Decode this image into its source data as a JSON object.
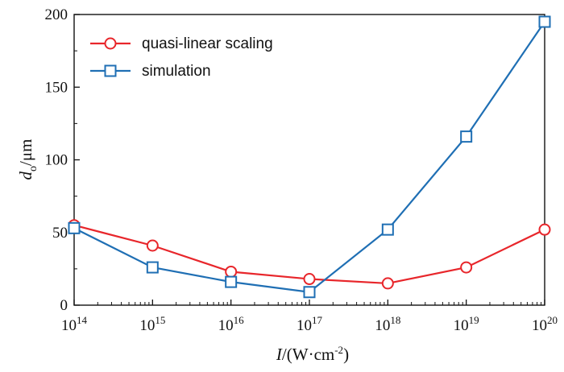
{
  "chart_data": {
    "type": "line",
    "x_scale": "log",
    "xlim": [
      100000000000000.0,
      1e+20
    ],
    "ylim": [
      0,
      200
    ],
    "x_tick_labels": [
      {
        "base": "10",
        "exp": "14"
      },
      {
        "base": "10",
        "exp": "15"
      },
      {
        "base": "10",
        "exp": "16"
      },
      {
        "base": "10",
        "exp": "17"
      },
      {
        "base": "10",
        "exp": "18"
      },
      {
        "base": "10",
        "exp": "19"
      },
      {
        "base": "10",
        "exp": "20"
      }
    ],
    "y_tick_labels": [
      "0",
      "50",
      "100",
      "150",
      "200"
    ],
    "xlabel": {
      "italic": "I",
      "rest": "/(W·cm",
      "sup": "-2",
      "close": ")"
    },
    "ylabel": {
      "italic": "d",
      "sub": "o",
      "rest": "/μm"
    },
    "legend_position": "top-left",
    "grid": false,
    "series": [
      {
        "name": "quasi-linear scaling",
        "color": "#e8262b",
        "marker": "circle",
        "x": [
          100000000000000.0,
          1000000000000000.0,
          1e+16,
          1e+17,
          1e+18,
          1e+19,
          1e+20
        ],
        "y": [
          55,
          41,
          23,
          18,
          15,
          26,
          52
        ]
      },
      {
        "name": "simulation",
        "color": "#1f6fb4",
        "marker": "square",
        "x": [
          100000000000000.0,
          1000000000000000.0,
          1e+16,
          1e+17,
          1e+18,
          1e+19,
          1e+20
        ],
        "y": [
          53,
          26,
          16,
          9,
          52,
          116,
          195
        ]
      }
    ]
  }
}
